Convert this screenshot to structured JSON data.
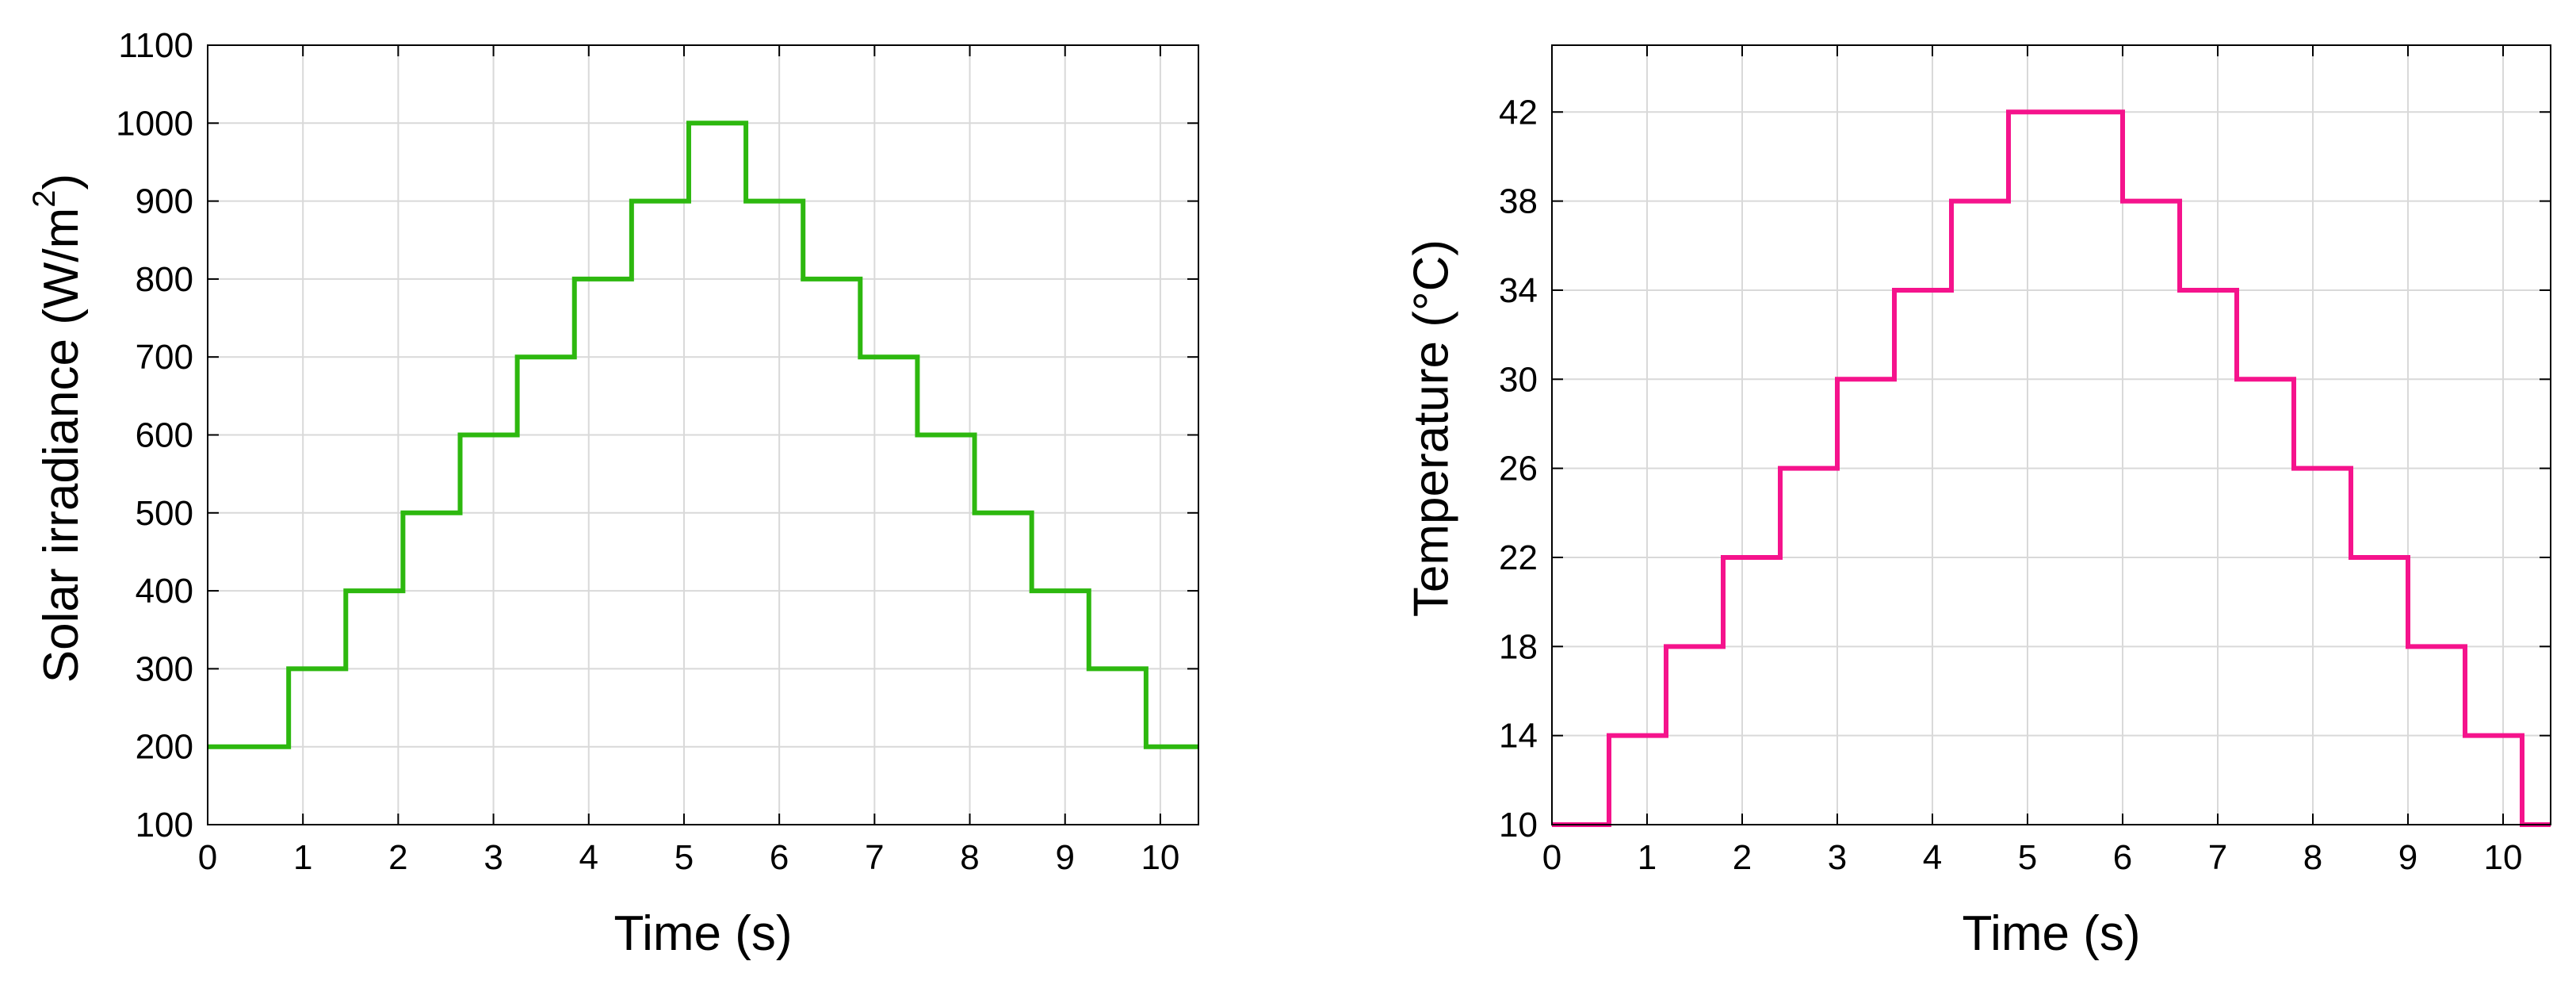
{
  "chart_data": [
    {
      "type": "line",
      "step": true,
      "xlabel": "Time (s)",
      "ylabel": "Solar irradiance (W/m",
      "ylabel_sup": "2",
      "ylabel_end": ")",
      "xlim": [
        0,
        10.4
      ],
      "ylim": [
        100,
        1100
      ],
      "xticks": [
        0,
        1,
        2,
        3,
        4,
        5,
        6,
        7,
        8,
        9,
        10
      ],
      "yticks": [
        100,
        200,
        300,
        400,
        500,
        600,
        700,
        800,
        900,
        1000,
        1100
      ],
      "grid": true,
      "color": "#2db80f",
      "x": [
        0,
        0.85,
        1.45,
        2.05,
        2.65,
        3.25,
        3.85,
        4.45,
        5.05,
        5.65,
        6.25,
        6.85,
        7.45,
        8.05,
        8.65,
        9.25,
        9.85,
        10.4
      ],
      "y": [
        200,
        300,
        400,
        500,
        600,
        700,
        800,
        900,
        1000,
        900,
        800,
        700,
        600,
        500,
        400,
        300,
        200,
        200
      ]
    },
    {
      "type": "line",
      "step": true,
      "xlabel": "Time (s)",
      "ylabel": "Temperature (°C)",
      "xlim": [
        0,
        10.5
      ],
      "ylim": [
        10,
        45
      ],
      "xticks": [
        0,
        1,
        2,
        3,
        4,
        5,
        6,
        7,
        8,
        9,
        10
      ],
      "yticks": [
        10,
        14,
        18,
        22,
        26,
        30,
        34,
        38,
        42
      ],
      "grid": true,
      "color": "#f5138c",
      "x": [
        0,
        0.6,
        1.2,
        1.8,
        2.4,
        3.0,
        3.6,
        4.2,
        4.8,
        6.0,
        6.6,
        7.2,
        7.8,
        8.4,
        9.0,
        9.6,
        10.2,
        10.5
      ],
      "y": [
        10,
        14,
        18,
        22,
        26,
        30,
        34,
        38,
        42,
        38,
        34,
        30,
        26,
        22,
        18,
        14,
        10,
        10
      ]
    }
  ]
}
